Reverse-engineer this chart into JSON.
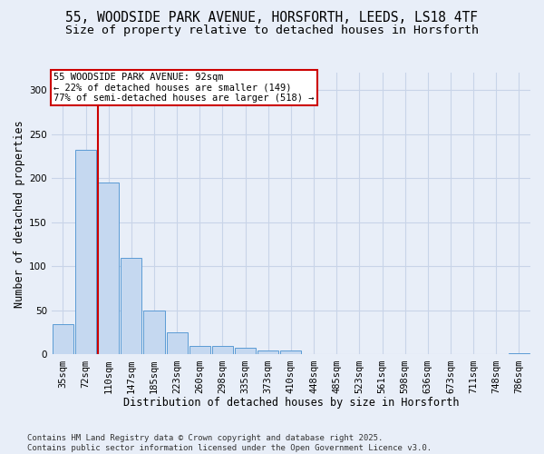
{
  "title_line1": "55, WOODSIDE PARK AVENUE, HORSFORTH, LEEDS, LS18 4TF",
  "title_line2": "Size of property relative to detached houses in Horsforth",
  "xlabel": "Distribution of detached houses by size in Horsforth",
  "ylabel": "Number of detached properties",
  "bar_color": "#c5d8f0",
  "bar_edge_color": "#5b9bd5",
  "bin_labels": [
    "35sqm",
    "72sqm",
    "110sqm",
    "147sqm",
    "185sqm",
    "223sqm",
    "260sqm",
    "298sqm",
    "335sqm",
    "373sqm",
    "410sqm",
    "448sqm",
    "485sqm",
    "523sqm",
    "561sqm",
    "598sqm",
    "636sqm",
    "673sqm",
    "711sqm",
    "748sqm",
    "786sqm"
  ],
  "bar_values": [
    35,
    232,
    195,
    110,
    50,
    25,
    10,
    10,
    8,
    5,
    5,
    0,
    1,
    0,
    0,
    0,
    0,
    0,
    0,
    0,
    2
  ],
  "property_line_x": 1.55,
  "annotation_text": "55 WOODSIDE PARK AVENUE: 92sqm\n← 22% of detached houses are smaller (149)\n77% of semi-detached houses are larger (518) →",
  "annotation_box_color": "#ffffff",
  "annotation_box_edge": "#cc0000",
  "vline_color": "#cc0000",
  "ylim": [
    0,
    320
  ],
  "yticks": [
    0,
    50,
    100,
    150,
    200,
    250,
    300
  ],
  "grid_color": "#c8d4e8",
  "background_color": "#e8eef8",
  "footer_text": "Contains HM Land Registry data © Crown copyright and database right 2025.\nContains public sector information licensed under the Open Government Licence v3.0.",
  "title_fontsize": 10.5,
  "subtitle_fontsize": 9.5,
  "axis_label_fontsize": 8.5,
  "tick_fontsize": 7.5,
  "annotation_fontsize": 7.5,
  "footer_fontsize": 6.5
}
